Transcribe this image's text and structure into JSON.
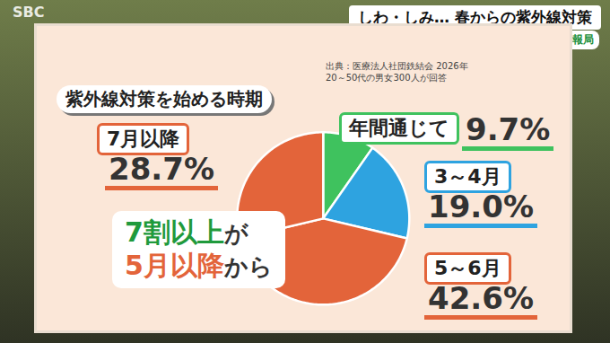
{
  "chart_data": {
    "type": "pie",
    "title": "紫外線対策を始める時期",
    "subtitle": "しわ・しみ… 春からの紫外線対策",
    "source": [
      "出典：医療法人社団鉄結会 2026年",
      "20～50代の男女300人が回答"
    ],
    "channel": "SBC",
    "program": "くらピタ！ 生活情報局",
    "annotations": [
      [
        "7割以上",
        "が"
      ],
      [
        "5月以降",
        "から"
      ]
    ],
    "categories": [
      "年間通じて",
      "3～4月",
      "5～6月",
      "7月以降"
    ],
    "values": [
      9.7,
      19.0,
      42.6,
      28.7
    ],
    "value_labels": [
      "9.7%",
      "19.0%",
      "42.6%",
      "28.7%"
    ],
    "colors": [
      "#3fc25e",
      "#2ea3e0",
      "#e3643a",
      "#e3643a"
    ],
    "data_labels": true
  }
}
